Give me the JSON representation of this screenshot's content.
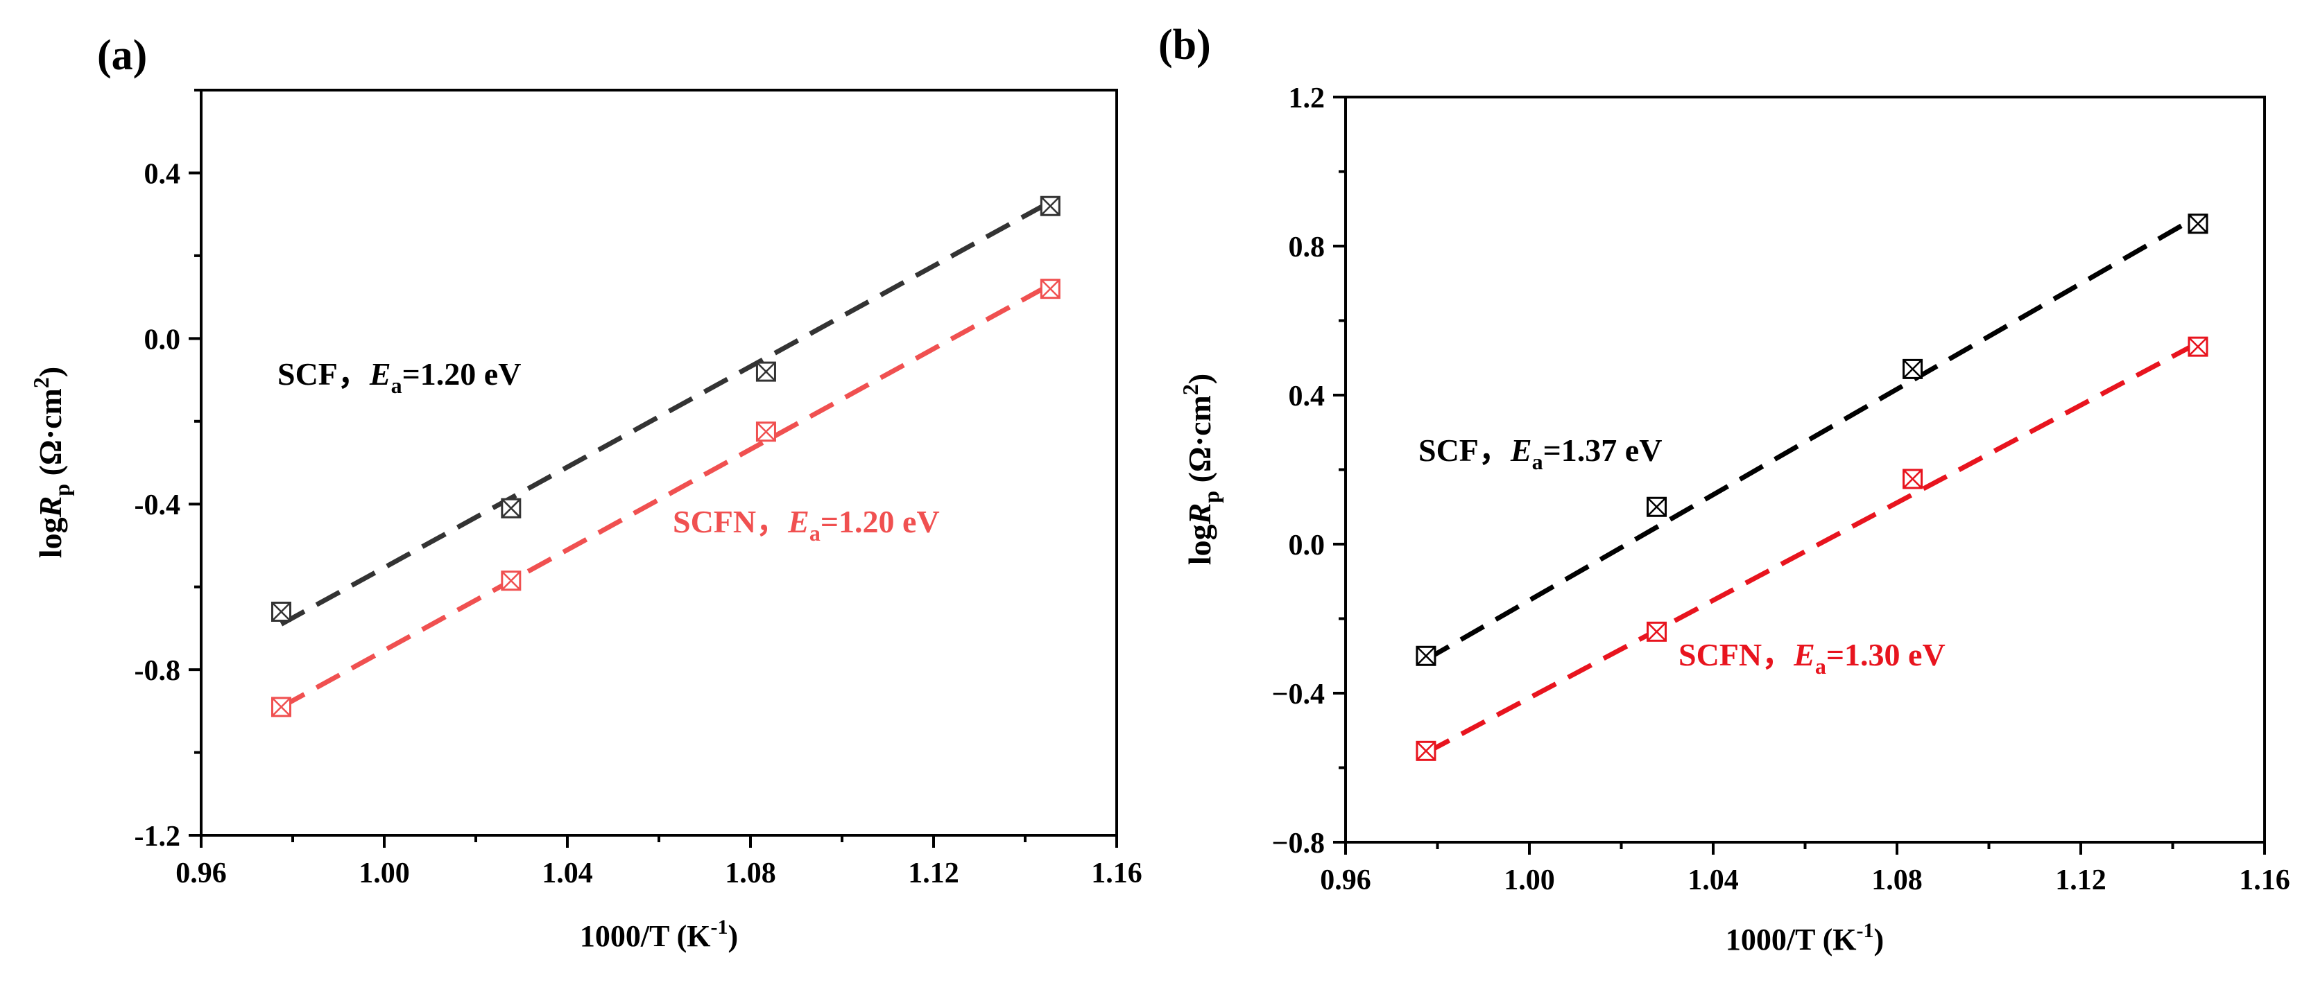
{
  "chart_data": [
    {
      "panel_label": "(a)",
      "type": "scatter",
      "xlabel": "1000/T (K",
      "xlabel_sup": "-1",
      "xlabel_close": ")",
      "ylabel_prefix": "log",
      "ylabel_var": "R",
      "ylabel_sub": "p",
      "ylabel_unit": " (Ω·cm",
      "ylabel_sup": "2",
      "ylabel_close": ")",
      "xlim": [
        0.96,
        1.16
      ],
      "ylim": [
        -1.2,
        0.6
      ],
      "xticks": [
        0.96,
        1.0,
        1.04,
        1.08,
        1.12,
        1.16
      ],
      "xtick_labels": [
        "0.96",
        "1.00",
        "1.04",
        "1.08",
        "1.12",
        "1.16"
      ],
      "yticks": [
        -1.2,
        -0.8,
        -0.4,
        0.0,
        0.4
      ],
      "ytick_labels": [
        "-1.2",
        "-0.8",
        "-0.4",
        "0.0",
        "0.4"
      ],
      "series": [
        {
          "name": "SCF",
          "color": "#333333",
          "x": [
            0.9775,
            1.0277,
            1.0834,
            1.1455
          ],
          "y": [
            -0.66,
            -0.41,
            -0.08,
            0.32
          ],
          "fit_x": [
            0.9775,
            1.1455
          ],
          "fit_y": [
            -0.69,
            0.33
          ],
          "label_name": "SCF，",
          "label_var": "E",
          "label_sub": "a",
          "label_value": "=1.20 eV"
        },
        {
          "name": "SCFN",
          "color": "#f05050",
          "x": [
            0.9775,
            1.0277,
            1.0834,
            1.1455
          ],
          "y": [
            -0.89,
            -0.585,
            -0.225,
            0.12
          ],
          "fit_x": [
            0.9775,
            1.1455
          ],
          "fit_y": [
            -0.89,
            0.13
          ],
          "label_name": "SCFN，",
          "label_var": "E",
          "label_sub": "a",
          "label_value": "=1.20 eV"
        }
      ]
    },
    {
      "panel_label": "(b)",
      "type": "scatter",
      "xlabel": "1000/T (K",
      "xlabel_sup": "-1",
      "xlabel_close": ")",
      "ylabel_prefix": "log",
      "ylabel_var": "R",
      "ylabel_sub": "p",
      "ylabel_unit": " (Ω·cm",
      "ylabel_sup": "2",
      "ylabel_close": ")",
      "xlim": [
        0.96,
        1.16
      ],
      "ylim": [
        -0.8,
        1.2
      ],
      "xticks": [
        0.96,
        1.0,
        1.04,
        1.08,
        1.12,
        1.16
      ],
      "xtick_labels": [
        "0.96",
        "1.00",
        "1.04",
        "1.08",
        "1.12",
        "1.16"
      ],
      "yticks": [
        -0.8,
        -0.4,
        0.0,
        0.4,
        0.8,
        1.2
      ],
      "ytick_labels": [
        "−0.8",
        "−0.4",
        "0.0",
        "0.4",
        "0.8",
        "1.2"
      ],
      "series": [
        {
          "name": "SCF",
          "color": "#000000",
          "x": [
            0.9775,
            1.0277,
            1.0834,
            1.1455
          ],
          "y": [
            -0.3,
            0.1,
            0.47,
            0.86
          ],
          "fit_x": [
            0.9775,
            1.1455
          ],
          "fit_y": [
            -0.31,
            0.88
          ],
          "label_name": "SCF，",
          "label_var": "E",
          "label_sub": "a",
          "label_value": "=1.37 eV"
        },
        {
          "name": "SCFN",
          "color": "#e8141e",
          "x": [
            0.9775,
            1.0277,
            1.0834,
            1.1455
          ],
          "y": [
            -0.555,
            -0.235,
            0.175,
            0.53
          ],
          "fit_x": [
            0.9775,
            1.1455
          ],
          "fit_y": [
            -0.56,
            0.54
          ],
          "label_name": "SCFN，",
          "label_var": "E",
          "label_sub": "a",
          "label_value": "=1.30 eV"
        }
      ]
    }
  ]
}
